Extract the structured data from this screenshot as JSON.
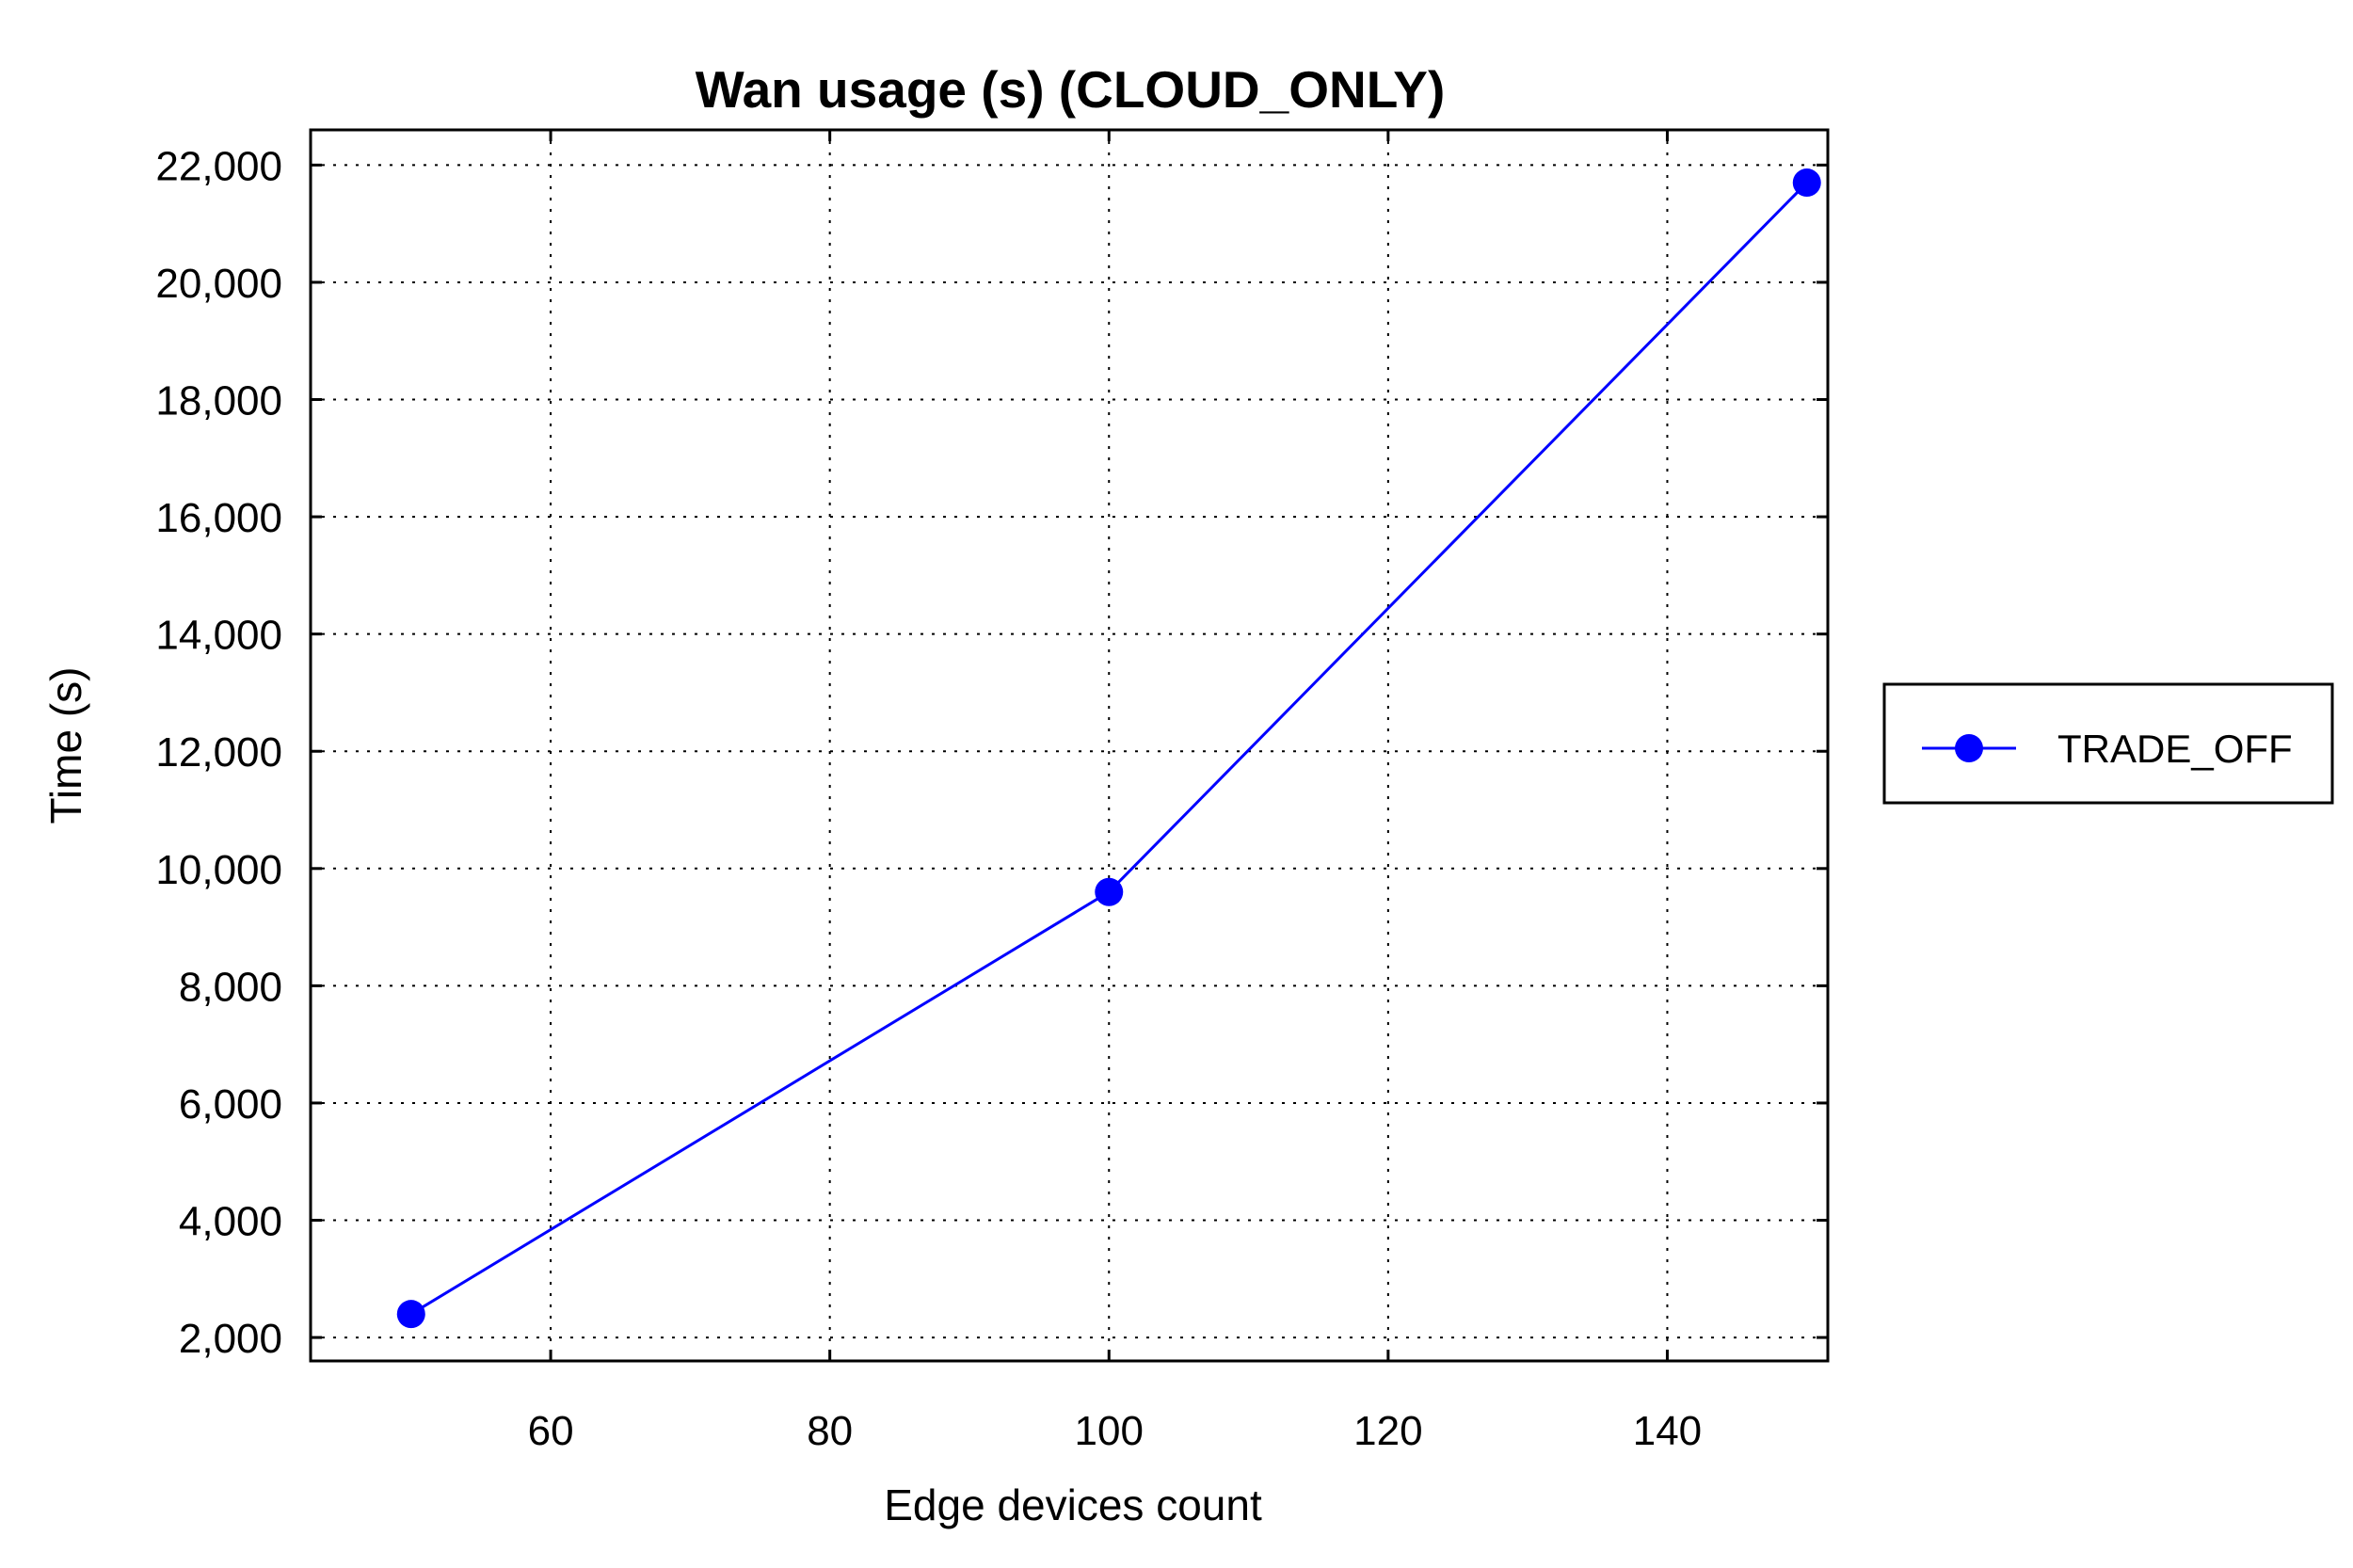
{
  "chart_data": {
    "type": "line",
    "title": "Wan usage (s) (CLOUD_ONLY)",
    "xlabel": "Edge devices count",
    "ylabel": "Time (s)",
    "xlim": [
      42.8,
      151.5
    ],
    "ylim": [
      1600,
      22600
    ],
    "x_ticks": [
      60,
      80,
      100,
      120,
      140
    ],
    "x_tick_labels": [
      "60",
      "80",
      "100",
      "120",
      "140"
    ],
    "y_ticks": [
      2000,
      4000,
      6000,
      8000,
      10000,
      12000,
      14000,
      16000,
      18000,
      20000,
      22000
    ],
    "y_tick_labels": [
      "2,000",
      "4,000",
      "6,000",
      "8,000",
      "10,000",
      "12,000",
      "14,000",
      "16,000",
      "18,000",
      "20,000",
      "22,000"
    ],
    "grid": true,
    "legend_position": "right",
    "series": [
      {
        "name": "TRADE_OFF",
        "color": "#0000ff",
        "marker": "circle",
        "x": [
          50,
          100,
          150
        ],
        "y": [
          2400,
          9600,
          21700
        ]
      }
    ]
  }
}
